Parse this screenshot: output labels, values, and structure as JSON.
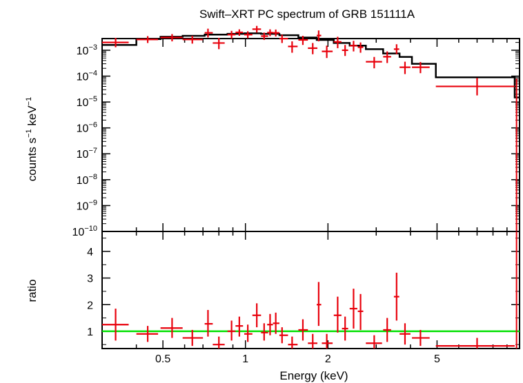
{
  "chart_data": [
    {
      "type": "scatter",
      "title": "Swift–XRT PC spectrum of GRB 151111A",
      "xlabel": "",
      "ylabel_parts": [
        "counts s",
        "−1",
        " keV",
        "−1"
      ],
      "ylabel": "counts s⁻¹ keV⁻¹",
      "xscale": "log",
      "yscale": "log",
      "xlim": [
        0.3,
        10
      ],
      "ylim_log10": [
        -10,
        -2.55
      ],
      "ytick_labels": [
        {
          "exp": -3,
          "base": "10",
          "sup": "−3"
        },
        {
          "exp": -4,
          "base": "10",
          "sup": "−4"
        },
        {
          "exp": -5,
          "base": "10",
          "sup": "−5"
        },
        {
          "exp": -6,
          "base": "10",
          "sup": "−6"
        },
        {
          "exp": -7,
          "base": "10",
          "sup": "−7"
        },
        {
          "exp": -8,
          "base": "10",
          "sup": "−8"
        },
        {
          "exp": -9,
          "base": "10",
          "sup": "−9"
        },
        {
          "exp": -10,
          "base": "10",
          "sup": "−10"
        }
      ],
      "series": [
        {
          "kind": "data",
          "color": "#e8000b",
          "points": [
            {
              "x": 0.336,
              "xerr": [
                0.3,
                0.375
              ],
              "y": 0.002,
              "yerr": [
                0.0013,
                0.003
              ]
            },
            {
              "x": 0.44,
              "xerr": [
                0.4,
                0.48
              ],
              "y": 0.0026,
              "yerr": [
                0.0019,
                0.0035
              ]
            },
            {
              "x": 0.54,
              "xerr": [
                0.49,
                0.59
              ],
              "y": 0.0031,
              "yerr": [
                0.0022,
                0.0042
              ]
            },
            {
              "x": 0.64,
              "xerr": [
                0.59,
                0.7
              ],
              "y": 0.0026,
              "yerr": [
                0.0018,
                0.0036
              ]
            },
            {
              "x": 0.73,
              "xerr": [
                0.71,
                0.76
              ],
              "y": 0.0047,
              "yerr": [
                0.0031,
                0.0068
              ]
            },
            {
              "x": 0.8,
              "xerr": [
                0.76,
                0.84
              ],
              "y": 0.0019,
              "yerr": [
                0.0011,
                0.003
              ]
            },
            {
              "x": 0.89,
              "xerr": [
                0.86,
                0.92
              ],
              "y": 0.004,
              "yerr": [
                0.0028,
                0.0056
              ]
            },
            {
              "x": 0.95,
              "xerr": [
                0.92,
                0.98
              ],
              "y": 0.0049,
              "yerr": [
                0.0036,
                0.0064
              ]
            },
            {
              "x": 1.02,
              "xerr": [
                0.99,
                1.06
              ],
              "y": 0.004,
              "yerr": [
                0.0029,
                0.0054
              ]
            },
            {
              "x": 1.1,
              "xerr": [
                1.06,
                1.14
              ],
              "y": 0.0065,
              "yerr": [
                0.0048,
                0.0087
              ]
            },
            {
              "x": 1.17,
              "xerr": [
                1.14,
                1.21
              ],
              "y": 0.0035,
              "yerr": [
                0.0025,
                0.0048
              ]
            },
            {
              "x": 1.23,
              "xerr": [
                1.2,
                1.26
              ],
              "y": 0.0048,
              "yerr": [
                0.0035,
                0.0064
              ]
            },
            {
              "x": 1.29,
              "xerr": [
                1.26,
                1.33
              ],
              "y": 0.0047,
              "yerr": [
                0.0034,
                0.0063
              ]
            },
            {
              "x": 1.36,
              "xerr": [
                1.33,
                1.43
              ],
              "y": 0.0028,
              "yerr": [
                0.0019,
                0.004
              ]
            },
            {
              "x": 1.48,
              "xerr": [
                1.43,
                1.55
              ],
              "y": 0.0014,
              "yerr": [
                0.0008,
                0.0022
              ]
            },
            {
              "x": 1.62,
              "xerr": [
                1.56,
                1.69
              ],
              "y": 0.0025,
              "yerr": [
                0.0016,
                0.0036
              ]
            },
            {
              "x": 1.76,
              "xerr": [
                1.69,
                1.83
              ],
              "y": 0.0012,
              "yerr": [
                0.0007,
                0.0019
              ]
            },
            {
              "x": 1.85,
              "xerr": [
                1.82,
                1.89
              ],
              "y": 0.0037,
              "yerr": [
                0.0022,
                0.0058
              ]
            },
            {
              "x": 1.98,
              "xerr": [
                1.9,
                2.08
              ],
              "y": 0.0009,
              "yerr": [
                0.0005,
                0.0015
              ]
            },
            {
              "x": 2.17,
              "xerr": [
                2.1,
                2.24
              ],
              "y": 0.0021,
              "yerr": [
                0.0012,
                0.0033
              ]
            },
            {
              "x": 2.31,
              "xerr": [
                2.25,
                2.37
              ],
              "y": 0.001,
              "yerr": [
                0.0006,
                0.0016
              ]
            },
            {
              "x": 2.48,
              "xerr": [
                2.4,
                2.56
              ],
              "y": 0.0015,
              "yerr": [
                0.0009,
                0.0023
              ]
            },
            {
              "x": 2.63,
              "xerr": [
                2.57,
                2.69
              ],
              "y": 0.0013,
              "yerr": [
                0.0008,
                0.002
              ]
            },
            {
              "x": 2.95,
              "xerr": [
                2.75,
                3.15
              ],
              "y": 0.00036,
              "yerr": [
                0.0002,
                0.00055
              ]
            },
            {
              "x": 3.29,
              "xerr": [
                3.18,
                3.4
              ],
              "y": 0.00056,
              "yerr": [
                0.00032,
                0.0009
              ]
            },
            {
              "x": 3.56,
              "xerr": [
                3.48,
                3.64
              ],
              "y": 0.0011,
              "yerr": [
                0.0007,
                0.0017
              ]
            },
            {
              "x": 3.82,
              "xerr": [
                3.65,
                4.0
              ],
              "y": 0.00022,
              "yerr": [
                0.00012,
                0.00036
              ]
            },
            {
              "x": 4.35,
              "xerr": [
                4.05,
                4.7
              ],
              "y": 0.00022,
              "yerr": [
                0.00013,
                0.00035
              ]
            },
            {
              "x": 7.0,
              "xerr": [
                4.95,
                9.6
              ],
              "y": 4e-05,
              "yerr": [
                1.8e-05,
                8.5e-05
              ]
            }
          ]
        },
        {
          "kind": "model",
          "color": "#000000",
          "steps": [
            [
              0.3,
              0.0016
            ],
            [
              0.4,
              0.0027
            ],
            [
              0.49,
              0.0033
            ],
            [
              0.59,
              0.0036
            ],
            [
              0.71,
              0.004
            ],
            [
              0.86,
              0.0043
            ],
            [
              0.99,
              0.0045
            ],
            [
              1.14,
              0.0043
            ],
            [
              1.33,
              0.0038
            ],
            [
              1.56,
              0.0031
            ],
            [
              1.82,
              0.0025
            ],
            [
              2.1,
              0.0019
            ],
            [
              2.4,
              0.0015
            ],
            [
              2.75,
              0.0011
            ],
            [
              3.18,
              0.00075
            ],
            [
              3.65,
              0.00055
            ],
            [
              4.05,
              0.0003
            ],
            [
              4.95,
              9e-05
            ],
            [
              9.6,
              1.5e-05
            ],
            [
              9.75,
              1.5e-05
            ]
          ]
        }
      ],
      "vertical_drop": {
        "x": 9.75,
        "yerr": [
          1e-10,
          8e-05
        ]
      }
    },
    {
      "type": "scatter",
      "title": "",
      "xlabel": "Energy (keV)",
      "ylabel": "ratio",
      "xscale": "log",
      "xlim": [
        0.3,
        10
      ],
      "ylim": [
        0.35,
        4.75
      ],
      "yticks": [
        1,
        2,
        3,
        4
      ],
      "ytick_labels": [
        "1",
        "2",
        "3",
        "4"
      ],
      "xticks": [
        0.5,
        1,
        2,
        5
      ],
      "xtick_labels": [
        "0.5",
        "1",
        "2",
        "5"
      ],
      "reference_line": {
        "y": 1.0,
        "color": "#00e000"
      },
      "series": [
        {
          "kind": "data",
          "color": "#e8000b",
          "points": [
            {
              "x": 0.336,
              "xerr": [
                0.3,
                0.375
              ],
              "y": 1.25,
              "yerr": [
                0.65,
                1.85
              ]
            },
            {
              "x": 0.44,
              "xerr": [
                0.4,
                0.48
              ],
              "y": 0.9,
              "yerr": [
                0.6,
                1.2
              ]
            },
            {
              "x": 0.54,
              "xerr": [
                0.49,
                0.59
              ],
              "y": 1.12,
              "yerr": [
                0.75,
                1.5
              ]
            },
            {
              "x": 0.64,
              "xerr": [
                0.59,
                0.7
              ],
              "y": 0.75,
              "yerr": [
                0.45,
                1.05
              ]
            },
            {
              "x": 0.73,
              "xerr": [
                0.71,
                0.76
              ],
              "y": 1.28,
              "yerr": [
                0.8,
                1.8
              ]
            },
            {
              "x": 0.8,
              "xerr": [
                0.76,
                0.84
              ],
              "y": 0.5,
              "yerr": [
                0.35,
                0.8
              ]
            },
            {
              "x": 0.89,
              "xerr": [
                0.86,
                0.92
              ],
              "y": 1.0,
              "yerr": [
                0.65,
                1.4
              ]
            },
            {
              "x": 0.95,
              "xerr": [
                0.92,
                0.98
              ],
              "y": 1.2,
              "yerr": [
                0.8,
                1.55
              ]
            },
            {
              "x": 1.02,
              "xerr": [
                0.99,
                1.06
              ],
              "y": 0.9,
              "yerr": [
                0.6,
                1.25
              ]
            },
            {
              "x": 1.1,
              "xerr": [
                1.06,
                1.14
              ],
              "y": 1.6,
              "yerr": [
                1.15,
                2.05
              ]
            },
            {
              "x": 1.17,
              "xerr": [
                1.14,
                1.21
              ],
              "y": 0.95,
              "yerr": [
                0.65,
                1.3
              ]
            },
            {
              "x": 1.23,
              "xerr": [
                1.2,
                1.26
              ],
              "y": 1.25,
              "yerr": [
                0.85,
                1.65
              ]
            },
            {
              "x": 1.29,
              "xerr": [
                1.26,
                1.33
              ],
              "y": 1.3,
              "yerr": [
                0.9,
                1.7
              ]
            },
            {
              "x": 1.36,
              "xerr": [
                1.33,
                1.43
              ],
              "y": 0.85,
              "yerr": [
                0.55,
                1.15
              ]
            },
            {
              "x": 1.48,
              "xerr": [
                1.43,
                1.55
              ],
              "y": 0.5,
              "yerr": [
                0.35,
                0.8
              ]
            },
            {
              "x": 1.62,
              "xerr": [
                1.56,
                1.69
              ],
              "y": 1.05,
              "yerr": [
                0.65,
                1.45
              ]
            },
            {
              "x": 1.76,
              "xerr": [
                1.69,
                1.83
              ],
              "y": 0.55,
              "yerr": [
                0.35,
                0.9
              ]
            },
            {
              "x": 1.85,
              "xerr": [
                1.82,
                1.89
              ],
              "y": 2.0,
              "yerr": [
                1.2,
                2.85
              ]
            },
            {
              "x": 1.98,
              "xerr": [
                1.9,
                2.08
              ],
              "y": 0.55,
              "yerr": [
                0.35,
                0.9
              ]
            },
            {
              "x": 2.17,
              "xerr": [
                2.1,
                2.24
              ],
              "y": 1.6,
              "yerr": [
                0.95,
                2.3
              ]
            },
            {
              "x": 2.31,
              "xerr": [
                2.25,
                2.37
              ],
              "y": 1.1,
              "yerr": [
                0.65,
                1.55
              ]
            },
            {
              "x": 2.48,
              "xerr": [
                2.4,
                2.56
              ],
              "y": 1.85,
              "yerr": [
                1.1,
                2.6
              ]
            },
            {
              "x": 2.63,
              "xerr": [
                2.57,
                2.69
              ],
              "y": 1.75,
              "yerr": [
                1.05,
                2.4
              ]
            },
            {
              "x": 2.95,
              "xerr": [
                2.75,
                3.15
              ],
              "y": 0.55,
              "yerr": [
                0.35,
                0.85
              ]
            },
            {
              "x": 3.29,
              "xerr": [
                3.18,
                3.4
              ],
              "y": 1.05,
              "yerr": [
                0.6,
                1.5
              ]
            },
            {
              "x": 3.56,
              "xerr": [
                3.48,
                3.64
              ],
              "y": 2.3,
              "yerr": [
                1.4,
                3.2
              ]
            },
            {
              "x": 3.82,
              "xerr": [
                3.65,
                4.0
              ],
              "y": 0.9,
              "yerr": [
                0.5,
                1.3
              ]
            },
            {
              "x": 4.35,
              "xerr": [
                4.05,
                4.7
              ],
              "y": 0.75,
              "yerr": [
                0.45,
                1.05
              ]
            },
            {
              "x": 7.0,
              "xerr": [
                4.95,
                9.6
              ],
              "y": 0.45,
              "yerr": [
                0.35,
                0.75
              ]
            }
          ]
        }
      ],
      "vertical_drop": {
        "x": 9.75,
        "yerr": [
          0.35,
          4.75
        ]
      }
    }
  ]
}
